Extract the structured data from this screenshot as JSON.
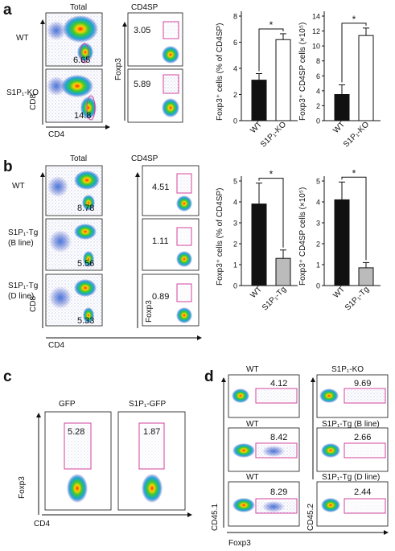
{
  "panels": {
    "a": {
      "letter": "a",
      "total_title": "Total",
      "cd4sp_title": "CD4SP",
      "rows": [
        {
          "label": "WT",
          "total_value": "6.65",
          "cd4sp_value": "3.05"
        },
        {
          "label": "S1P₁-KO",
          "total_value": "14.8",
          "cd4sp_value": "5.89"
        }
      ],
      "x_axis": "CD4",
      "y_axis_left": "CD8",
      "y_axis_right": "Foxp3"
    },
    "b": {
      "letter": "b",
      "total_title": "Total",
      "cd4sp_title": "CD4SP",
      "rows": [
        {
          "label": "WT",
          "sublabel": "",
          "total_value": "8.78",
          "cd4sp_value": "4.51"
        },
        {
          "label": "S1P₁-Tg",
          "sublabel": "(B line)",
          "total_value": "5.56",
          "cd4sp_value": "1.11"
        },
        {
          "label": "S1P₁-Tg",
          "sublabel": "(D line)",
          "total_value": "5.33",
          "cd4sp_value": "0.89"
        }
      ],
      "x_axis": "CD4",
      "y_axis_left": "CD8",
      "y_axis_right": "Foxp3"
    },
    "c": {
      "letter": "c",
      "columns": [
        {
          "label": "GFP",
          "value": "5.28"
        },
        {
          "label": "S1P₁-GFP",
          "value": "1.87"
        }
      ],
      "x_axis": "CD4",
      "y_axis": "Foxp3"
    },
    "d": {
      "letter": "d",
      "left": [
        {
          "label": "WT",
          "value": "4.12"
        },
        {
          "label": "WT",
          "value": "8.42"
        },
        {
          "label": "WT",
          "value": "8.29"
        }
      ],
      "right": [
        {
          "label": "S1P₁-KO",
          "value": "9.69"
        },
        {
          "label": "S1P₁-Tg (B line)",
          "value": "2.66"
        },
        {
          "label": "S1P₁-Tg (D line)",
          "value": "2.44"
        }
      ],
      "x_axis": "Foxp3",
      "y_axis_left": "CD45.1",
      "y_axis_right": "CD45.2"
    }
  },
  "chart_data": [
    {
      "type": "bar",
      "panel": "a",
      "categories": [
        "WT",
        "S1P₁-KO"
      ],
      "values": [
        3.1,
        6.2
      ],
      "errors": [
        0.5,
        0.45
      ],
      "ylabel": "Foxp3⁺ cells (% of CD4SP)",
      "ylim": [
        0,
        8
      ],
      "yticks": [
        "0",
        "2",
        "4",
        "6",
        "8"
      ],
      "significance": "*",
      "colors": [
        "#111111",
        "#ffffff"
      ]
    },
    {
      "type": "bar",
      "panel": "a",
      "categories": [
        "WT",
        "S1P₁-KO"
      ],
      "values": [
        3.5,
        11.4
      ],
      "errors": [
        1.3,
        1.0
      ],
      "ylabel": "Foxp3⁺ CD4SP cells (×10⁵)",
      "ylim": [
        0,
        14
      ],
      "yticks": [
        "0",
        "2",
        "4",
        "6",
        "8",
        "10",
        "12",
        "14"
      ],
      "significance": "*",
      "colors": [
        "#111111",
        "#ffffff"
      ]
    },
    {
      "type": "bar",
      "panel": "b",
      "categories": [
        "WT",
        "S1P₁-Tg"
      ],
      "values": [
        3.9,
        1.3
      ],
      "errors": [
        1.0,
        0.4
      ],
      "ylabel": "Foxp3⁺ cells (% of CD4SP)",
      "ylim": [
        0,
        5
      ],
      "yticks": [
        "0",
        "1",
        "2",
        "3",
        "4",
        "5"
      ],
      "significance": "*",
      "colors": [
        "#111111",
        "#bbbbbb"
      ]
    },
    {
      "type": "bar",
      "panel": "b",
      "categories": [
        "WT",
        "S1P₁-Tg"
      ],
      "values": [
        4.1,
        0.85
      ],
      "errors": [
        0.85,
        0.25
      ],
      "ylabel": "Foxp3⁺ CD4SP cells (×10⁵)",
      "ylim": [
        0,
        5
      ],
      "yticks": [
        "0",
        "1",
        "2",
        "3",
        "4",
        "5"
      ],
      "significance": "*",
      "colors": [
        "#111111",
        "#bbbbbb"
      ]
    }
  ]
}
